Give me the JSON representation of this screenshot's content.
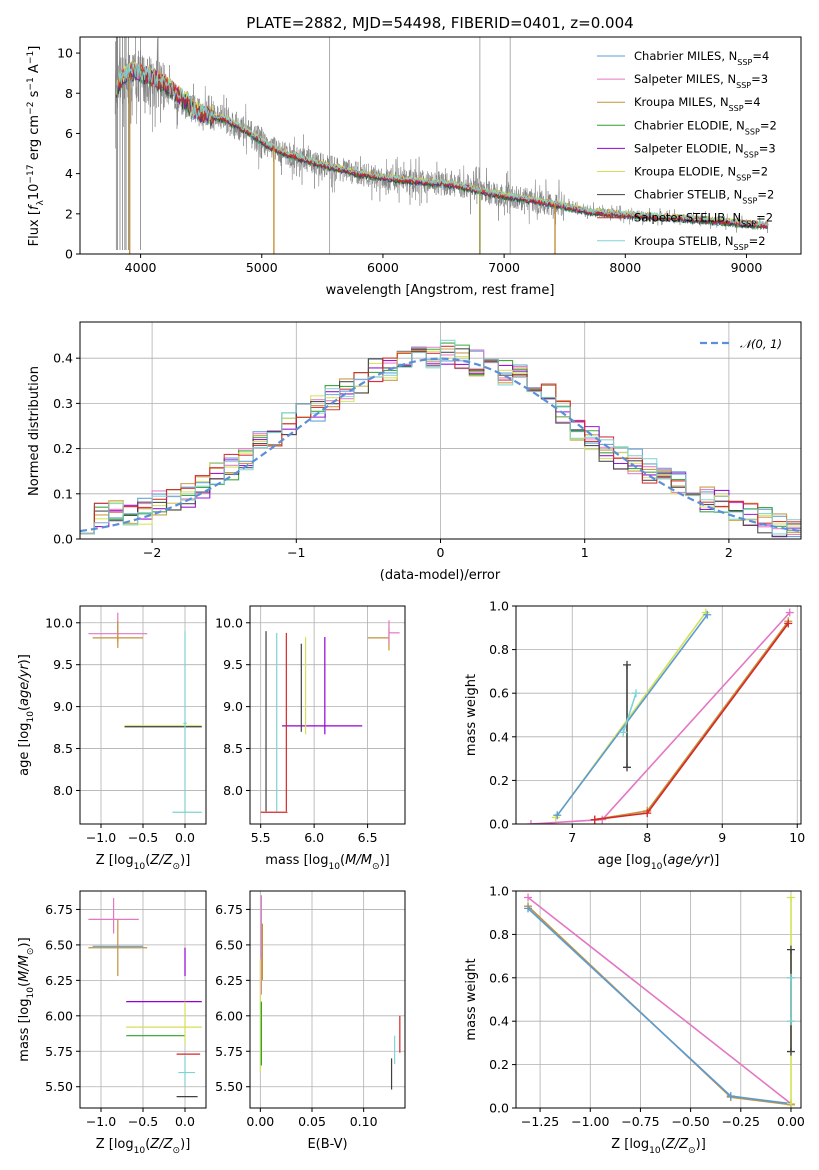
{
  "chart_data": [
    {
      "id": "spectrum",
      "type": "line",
      "title": "PLATE=2882, MJD=54498, FIBERID=0401, z=0.004",
      "xlabel": "wavelength [Angstrom, rest frame]",
      "ylabel": "Flux [f_λ10^-17 erg cm^-2 s^-1 A^-1]",
      "xlim": [
        3500,
        9450
      ],
      "ylim": [
        0,
        10.8
      ],
      "xticks": [
        4000,
        5000,
        6000,
        7000,
        8000,
        9000
      ],
      "yticks": [
        0,
        2,
        4,
        6,
        8,
        10
      ],
      "grid": false,
      "legend": "top-right",
      "data_color": "#808080",
      "data_continuum": [
        [
          3790,
          8.0
        ],
        [
          3850,
          8.6
        ],
        [
          3950,
          8.9
        ],
        [
          4050,
          8.7
        ],
        [
          4200,
          8.3
        ],
        [
          4350,
          7.5
        ],
        [
          4500,
          7.0
        ],
        [
          4700,
          6.7
        ],
        [
          4850,
          6.2
        ],
        [
          4950,
          5.8
        ],
        [
          5050,
          5.4
        ],
        [
          5200,
          5.0
        ],
        [
          5400,
          4.6
        ],
        [
          5600,
          4.3
        ],
        [
          5800,
          4.0
        ],
        [
          6000,
          3.8
        ],
        [
          6300,
          3.6
        ],
        [
          6500,
          3.5
        ],
        [
          6700,
          3.3
        ],
        [
          6900,
          3.0
        ],
        [
          7100,
          2.8
        ],
        [
          7400,
          2.5
        ],
        [
          7700,
          2.1
        ],
        [
          8000,
          1.95
        ],
        [
          8500,
          1.75
        ],
        [
          9000,
          1.5
        ],
        [
          9180,
          1.4
        ]
      ],
      "model_colors": [
        "#5b9bd5",
        "#e377c2",
        "#c4923a",
        "#2ca02c",
        "#9400d3",
        "#d4e157",
        "#404040",
        "#d62728",
        "#7fd3d3"
      ],
      "legend_entries": [
        {
          "name": "Chabrier MILES, N_SSP=4",
          "color": "#5b9bd5"
        },
        {
          "name": "Salpeter MILES, N_SSP=3",
          "color": "#e377c2"
        },
        {
          "name": "Kroupa MILES, N_SSP=4",
          "color": "#c4923a"
        },
        {
          "name": "Chabrier ELODIE, N_SSP=2",
          "color": "#2ca02c"
        },
        {
          "name": "Salpeter ELODIE, N_SSP=3",
          "color": "#9400d3"
        },
        {
          "name": "Kroupa ELODIE, N_SSP=2",
          "color": "#d4e157"
        },
        {
          "name": "Chabrier STELIB, N_SSP=2",
          "color": "#404040"
        },
        {
          "name": "Salpeter STELIB, N_SSP=2",
          "color": "#d62728"
        },
        {
          "name": "Kroupa STELIB, N_SSP=2",
          "color": "#7fd3d3"
        }
      ]
    },
    {
      "id": "residuals",
      "type": "line",
      "xlabel": "(data-model)/error",
      "ylabel": "Normed distribution",
      "xlim": [
        -2.5,
        2.5
      ],
      "ylim": [
        0,
        0.48
      ],
      "xticks": [
        -2,
        -1,
        0,
        1,
        2
      ],
      "yticks": [
        0.0,
        0.1,
        0.2,
        0.3,
        0.4
      ],
      "grid": true,
      "legend": "top-right",
      "gaussian_label": "𝒩(0, 1)",
      "gaussian_color": "#5b8fd9",
      "bin_width": 0.1,
      "base_hist": [
        0.04,
        0.05,
        0.06,
        0.05,
        0.06,
        0.08,
        0.09,
        0.1,
        0.12,
        0.14,
        0.16,
        0.18,
        0.21,
        0.23,
        0.25,
        0.27,
        0.29,
        0.31,
        0.33,
        0.35,
        0.37,
        0.38,
        0.39,
        0.4,
        0.4,
        0.41,
        0.4,
        0.39,
        0.38,
        0.37,
        0.38,
        0.35,
        0.32,
        0.28,
        0.24,
        0.22,
        0.2,
        0.18,
        0.17,
        0.15,
        0.13,
        0.12,
        0.1,
        0.09,
        0.08,
        0.07,
        0.05,
        0.04,
        0.03,
        0.02
      ]
    },
    {
      "id": "age-vs-Z",
      "type": "scatter",
      "xlabel": "Z [log10(Z/Z☉)]",
      "ylabel": "age [log10(age/yr)]",
      "xlim": [
        -1.25,
        0.25
      ],
      "ylim": [
        7.6,
        10.2
      ],
      "xticks": [
        -1.0,
        -0.5,
        0.0
      ],
      "xtick_labels": [
        "−1.0",
        "−0.5",
        "0.0"
      ],
      "yticks": [
        8.0,
        8.5,
        9.0,
        9.5,
        10.0
      ],
      "grid": true,
      "crosses": [
        {
          "x": -0.8,
          "xerr": [
            0.35,
            0.35
          ],
          "y": 9.87,
          "yerr": [
            0.1,
            0.25
          ],
          "color": "#e377c2"
        },
        {
          "x": -0.8,
          "xerr": [
            0.3,
            0.3
          ],
          "y": 9.82,
          "yerr": [
            0.12,
            0.2
          ],
          "color": "#c4923a"
        },
        {
          "x": -0.22,
          "xerr": [
            0.5,
            0.42
          ],
          "y": 8.77,
          "yerr": [
            0,
            0
          ],
          "color": "#d4e157"
        },
        {
          "x": -0.22,
          "xerr": [
            0.5,
            0.42
          ],
          "y": 8.76,
          "yerr": [
            0,
            0
          ],
          "color": "#404040"
        },
        {
          "x": 0.0,
          "xerr": [
            0.02,
            0.02
          ],
          "y": 8.8,
          "yerr": [
            1.07,
            1.1
          ],
          "color": "#7fd3d3"
        },
        {
          "x": 0.0,
          "xerr": [
            0.15,
            0.2
          ],
          "y": 7.74,
          "yerr": [
            0,
            0
          ],
          "color": "#7fd3d3"
        }
      ]
    },
    {
      "id": "age-vs-mass",
      "type": "scatter",
      "xlabel": "mass [log10(M/M☉)]",
      "ylabel": "",
      "xlim": [
        5.4,
        6.85
      ],
      "ylim": [
        7.6,
        10.2
      ],
      "xticks": [
        5.5,
        6.0,
        6.5
      ],
      "yticks": [
        8.0,
        8.5,
        9.0,
        9.5,
        10.0
      ],
      "grid": true,
      "crosses": [
        {
          "x": 6.7,
          "xerr": [
            0.2,
            0.0
          ],
          "y": 9.82,
          "yerr": [
            0.15,
            0.12
          ],
          "color": "#c4923a"
        },
        {
          "x": 6.7,
          "xerr": [
            0.0,
            0.1
          ],
          "y": 9.88,
          "yerr": [
            0.12,
            0.15
          ],
          "color": "#e377c2"
        },
        {
          "x": 6.0,
          "xerr": [
            0.3,
            0.45
          ],
          "y": 8.77,
          "yerr": [
            0,
            0
          ],
          "color": "#9400d3"
        },
        {
          "x": 6.1,
          "xerr": [
            0,
            0
          ],
          "y": 9.25,
          "yerr": [
            0.58,
            0.58
          ],
          "color": "#9400d3"
        },
        {
          "x": 5.92,
          "xerr": [
            0,
            0
          ],
          "y": 9.25,
          "yerr": [
            0.58,
            0.58
          ],
          "color": "#d4e157"
        },
        {
          "x": 5.88,
          "xerr": [
            0,
            0
          ],
          "y": 9.2,
          "yerr": [
            0.5,
            0.55
          ],
          "color": "#404040"
        },
        {
          "x": 5.74,
          "xerr": [
            0,
            0
          ],
          "y": 8.8,
          "yerr": [
            1.05,
            1.08
          ],
          "color": "#d62728"
        },
        {
          "x": 5.65,
          "xerr": [
            0,
            0
          ],
          "y": 8.8,
          "yerr": [
            1.05,
            1.08
          ],
          "color": "#7fd3d3"
        },
        {
          "x": 5.55,
          "xerr": [
            0,
            0
          ],
          "y": 8.8,
          "yerr": [
            1.05,
            1.1
          ],
          "color": "#404040"
        },
        {
          "x": 5.6,
          "xerr": [
            0.1,
            0.15
          ],
          "y": 7.74,
          "yerr": [
            0,
            0
          ],
          "color": "#d62728"
        }
      ]
    },
    {
      "id": "weight-vs-age",
      "type": "line",
      "xlabel": "age [log10(age/yr)]",
      "ylabel": "mass weight",
      "xlim": [
        6.25,
        10.05
      ],
      "ylim": [
        0,
        1
      ],
      "xticks": [
        7,
        8,
        9,
        10
      ],
      "yticks": [
        0.0,
        0.2,
        0.4,
        0.6,
        0.8,
        1.0
      ],
      "grid": true,
      "series": [
        {
          "color": "#d4e157",
          "points": [
            [
              6.78,
              0.03
            ],
            [
              8.78,
              0.97
            ]
          ]
        },
        {
          "color": "#5b9bd5",
          "points": [
            [
              6.8,
              0.04
            ],
            [
              8.8,
              0.96
            ]
          ]
        },
        {
          "color": "#e377c2",
          "points": [
            [
              6.45,
              0.0
            ],
            [
              7.4,
              0.02
            ],
            [
              9.9,
              0.97
            ]
          ]
        },
        {
          "color": "#c4923a",
          "points": [
            [
              7.3,
              0.02
            ],
            [
              8.0,
              0.06
            ],
            [
              9.88,
              0.93
            ]
          ]
        },
        {
          "color": "#d62728",
          "points": [
            [
              7.3,
              0.02
            ],
            [
              8.0,
              0.05
            ],
            [
              9.88,
              0.92
            ]
          ]
        },
        {
          "color": "#404040",
          "points": [
            [
              7.73,
              0.26
            ],
            [
              7.73,
              0.73
            ]
          ]
        },
        {
          "color": "#7fd3d3",
          "points": [
            [
              7.68,
              0.42
            ],
            [
              7.85,
              0.6
            ]
          ]
        }
      ]
    },
    {
      "id": "mass-vs-Z",
      "type": "scatter",
      "xlabel": "Z [log10(Z/Z☉)]",
      "ylabel": "mass [log10(M/M☉)]",
      "xlim": [
        -1.25,
        0.25
      ],
      "ylim": [
        5.35,
        6.88
      ],
      "xticks": [
        -1.0,
        -0.5,
        0.0
      ],
      "xtick_labels": [
        "−1.0",
        "−0.5",
        "0.0"
      ],
      "yticks": [
        5.5,
        5.75,
        6.0,
        6.25,
        6.5,
        6.75
      ],
      "ytick_labels": [
        "5.50",
        "5.75",
        "6.00",
        "6.25",
        "6.50",
        "6.75"
      ],
      "grid": true,
      "crosses": [
        {
          "x": -0.85,
          "xerr": [
            0.3,
            0.3
          ],
          "y": 6.68,
          "yerr": [
            0.1,
            0.15
          ],
          "color": "#e377c2"
        },
        {
          "x": -0.8,
          "xerr": [
            0.35,
            0.35
          ],
          "y": 6.48,
          "yerr": [
            0.2,
            0.2
          ],
          "color": "#c4923a"
        },
        {
          "x": -0.8,
          "xerr": [
            0.3,
            0.3
          ],
          "y": 6.49,
          "yerr": [
            0,
            0
          ],
          "color": "#5b9bd5"
        },
        {
          "x": -0.3,
          "xerr": [
            0.4,
            0.5
          ],
          "y": 6.1,
          "yerr": [
            0,
            0
          ],
          "color": "#9400d3"
        },
        {
          "x": 0.0,
          "xerr": [
            0,
            0
          ],
          "y": 6.38,
          "yerr": [
            0.1,
            0.1
          ],
          "color": "#9400d3"
        },
        {
          "x": -0.25,
          "xerr": [
            0.45,
            0.45
          ],
          "y": 5.92,
          "yerr": [
            0,
            0
          ],
          "color": "#d4e157"
        },
        {
          "x": -0.3,
          "xerr": [
            0.4,
            0.3
          ],
          "y": 5.86,
          "yerr": [
            0,
            0
          ],
          "color": "#2ca02c"
        },
        {
          "x": 0.0,
          "xerr": [
            0,
            0
          ],
          "y": 5.95,
          "yerr": [
            0.15,
            0.15
          ],
          "color": "#d4e157"
        },
        {
          "x": 0.0,
          "xerr": [
            0.1,
            0.18
          ],
          "y": 5.73,
          "yerr": [
            0,
            0
          ],
          "color": "#d62728"
        },
        {
          "x": 0.0,
          "xerr": [
            0.08,
            0.12
          ],
          "y": 5.6,
          "yerr": [
            0,
            0
          ],
          "color": "#7fd3d3"
        },
        {
          "x": 0.0,
          "xerr": [
            0.1,
            0.15
          ],
          "y": 5.43,
          "yerr": [
            0,
            0
          ],
          "color": "#404040"
        },
        {
          "x": 0.0,
          "xerr": [
            0,
            0
          ],
          "y": 5.6,
          "yerr": [
            0.1,
            0.12
          ],
          "color": "#7fd3d3"
        }
      ]
    },
    {
      "id": "mass-vs-EBV",
      "type": "scatter",
      "xlabel": "E(B-V)",
      "ylabel": "",
      "xlim": [
        -0.01,
        0.14
      ],
      "ylim": [
        5.35,
        6.88
      ],
      "xticks": [
        0.0,
        0.05,
        0.1
      ],
      "xtick_labels": [
        "0.00",
        "0.05",
        "0.10"
      ],
      "yticks": [
        5.5,
        5.75,
        6.0,
        6.25,
        6.5,
        6.75
      ],
      "ytick_labels": [
        "5.50",
        "5.75",
        "6.00",
        "6.25",
        "6.50",
        "6.75"
      ],
      "grid": true,
      "crosses": [
        {
          "x": 0.001,
          "xerr": [
            0,
            0
          ],
          "y": 6.5,
          "yerr": [
            0.35,
            0.35
          ],
          "color": "#e377c2"
        },
        {
          "x": 0.002,
          "xerr": [
            0,
            0
          ],
          "y": 6.45,
          "yerr": [
            0.2,
            0.2
          ],
          "color": "#c4923a"
        },
        {
          "x": 0.0,
          "xerr": [
            0,
            0
          ],
          "y": 6.0,
          "yerr": [
            0.4,
            0.4
          ],
          "color": "#d4e157"
        },
        {
          "x": 0.001,
          "xerr": [
            0,
            0
          ],
          "y": 5.8,
          "yerr": [
            0.15,
            0.3
          ],
          "color": "#2ca02c"
        },
        {
          "x": 0.135,
          "xerr": [
            0,
            0
          ],
          "y": 5.86,
          "yerr": [
            0.12,
            0.14
          ],
          "color": "#d62728"
        },
        {
          "x": 0.13,
          "xerr": [
            0,
            0
          ],
          "y": 5.76,
          "yerr": [
            0.1,
            0.1
          ],
          "color": "#7fd3d3"
        },
        {
          "x": 0.127,
          "xerr": [
            0,
            0
          ],
          "y": 5.58,
          "yerr": [
            0.1,
            0.12
          ],
          "color": "#404040"
        }
      ]
    },
    {
      "id": "weight-vs-Z",
      "type": "line",
      "xlabel": "Z [log10(Z/Z☉)]",
      "ylabel": "mass weight",
      "xlim": [
        -1.37,
        0.05
      ],
      "ylim": [
        0,
        1
      ],
      "xticks": [
        -1.25,
        -1.0,
        -0.75,
        -0.5,
        -0.25,
        0.0
      ],
      "xtick_labels": [
        "−1.25",
        "−1.00",
        "−0.75",
        "−0.50",
        "−0.25",
        "0.00"
      ],
      "yticks": [
        0.0,
        0.2,
        0.4,
        0.6,
        0.8,
        1.0
      ],
      "grid": true,
      "series": [
        {
          "color": "#e377c2",
          "points": [
            [
              -1.31,
              0.97
            ],
            [
              0.0,
              0.02
            ]
          ]
        },
        {
          "color": "#c4923a",
          "points": [
            [
              -1.31,
              0.93
            ],
            [
              -0.3,
              0.05
            ],
            [
              0.0,
              0.015
            ]
          ]
        },
        {
          "color": "#5b9bd5",
          "points": [
            [
              -1.31,
              0.92
            ],
            [
              -0.3,
              0.055
            ],
            [
              0.0,
              0.02
            ]
          ]
        },
        {
          "color": "#d4e157",
          "points": [
            [
              0.0,
              0.02
            ],
            [
              0.0,
              0.97
            ]
          ]
        },
        {
          "color": "#404040",
          "points": [
            [
              0.0,
              0.26
            ],
            [
              0.0,
              0.73
            ]
          ]
        },
        {
          "color": "#7fd3d3",
          "points": [
            [
              0.0,
              0.4
            ],
            [
              0.0,
              0.6
            ]
          ]
        }
      ]
    }
  ]
}
